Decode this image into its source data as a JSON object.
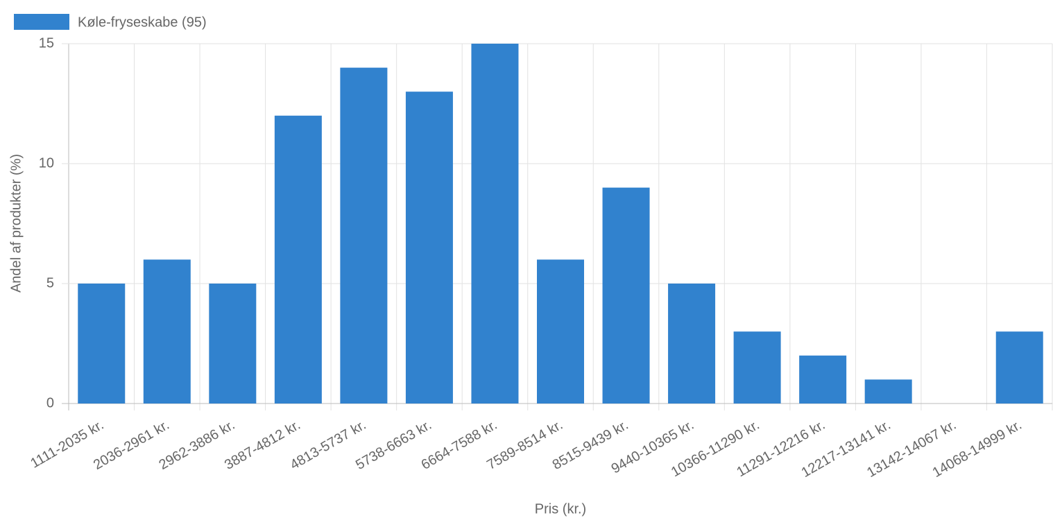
{
  "chart_data": {
    "type": "bar",
    "x_label": "Pris (kr.)",
    "y_label": "Andel af produkter (%)",
    "categories": [
      "1111-2035 kr.",
      "2036-2961 kr.",
      "2962-3886 kr.",
      "3887-4812 kr.",
      "4813-5737 kr.",
      "5738-6663 kr.",
      "6664-7588 kr.",
      "7589-8514 kr.",
      "8515-9439 kr.",
      "9440-10365 kr.",
      "10366-11290 kr.",
      "11291-12216 kr.",
      "12217-13141 kr.",
      "13142-14067 kr.",
      "14068-14999 kr."
    ],
    "series": [
      {
        "name": "Køle-fryseskabe (95)",
        "color": "#3182ce",
        "values": [
          5,
          6,
          5,
          12,
          14,
          13,
          15,
          6,
          9,
          5,
          3,
          2,
          1,
          0,
          3
        ]
      }
    ],
    "ylim": [
      0,
      15
    ],
    "yticks": [
      0,
      5,
      10,
      15
    ],
    "grid": true,
    "legend": "top-left"
  }
}
